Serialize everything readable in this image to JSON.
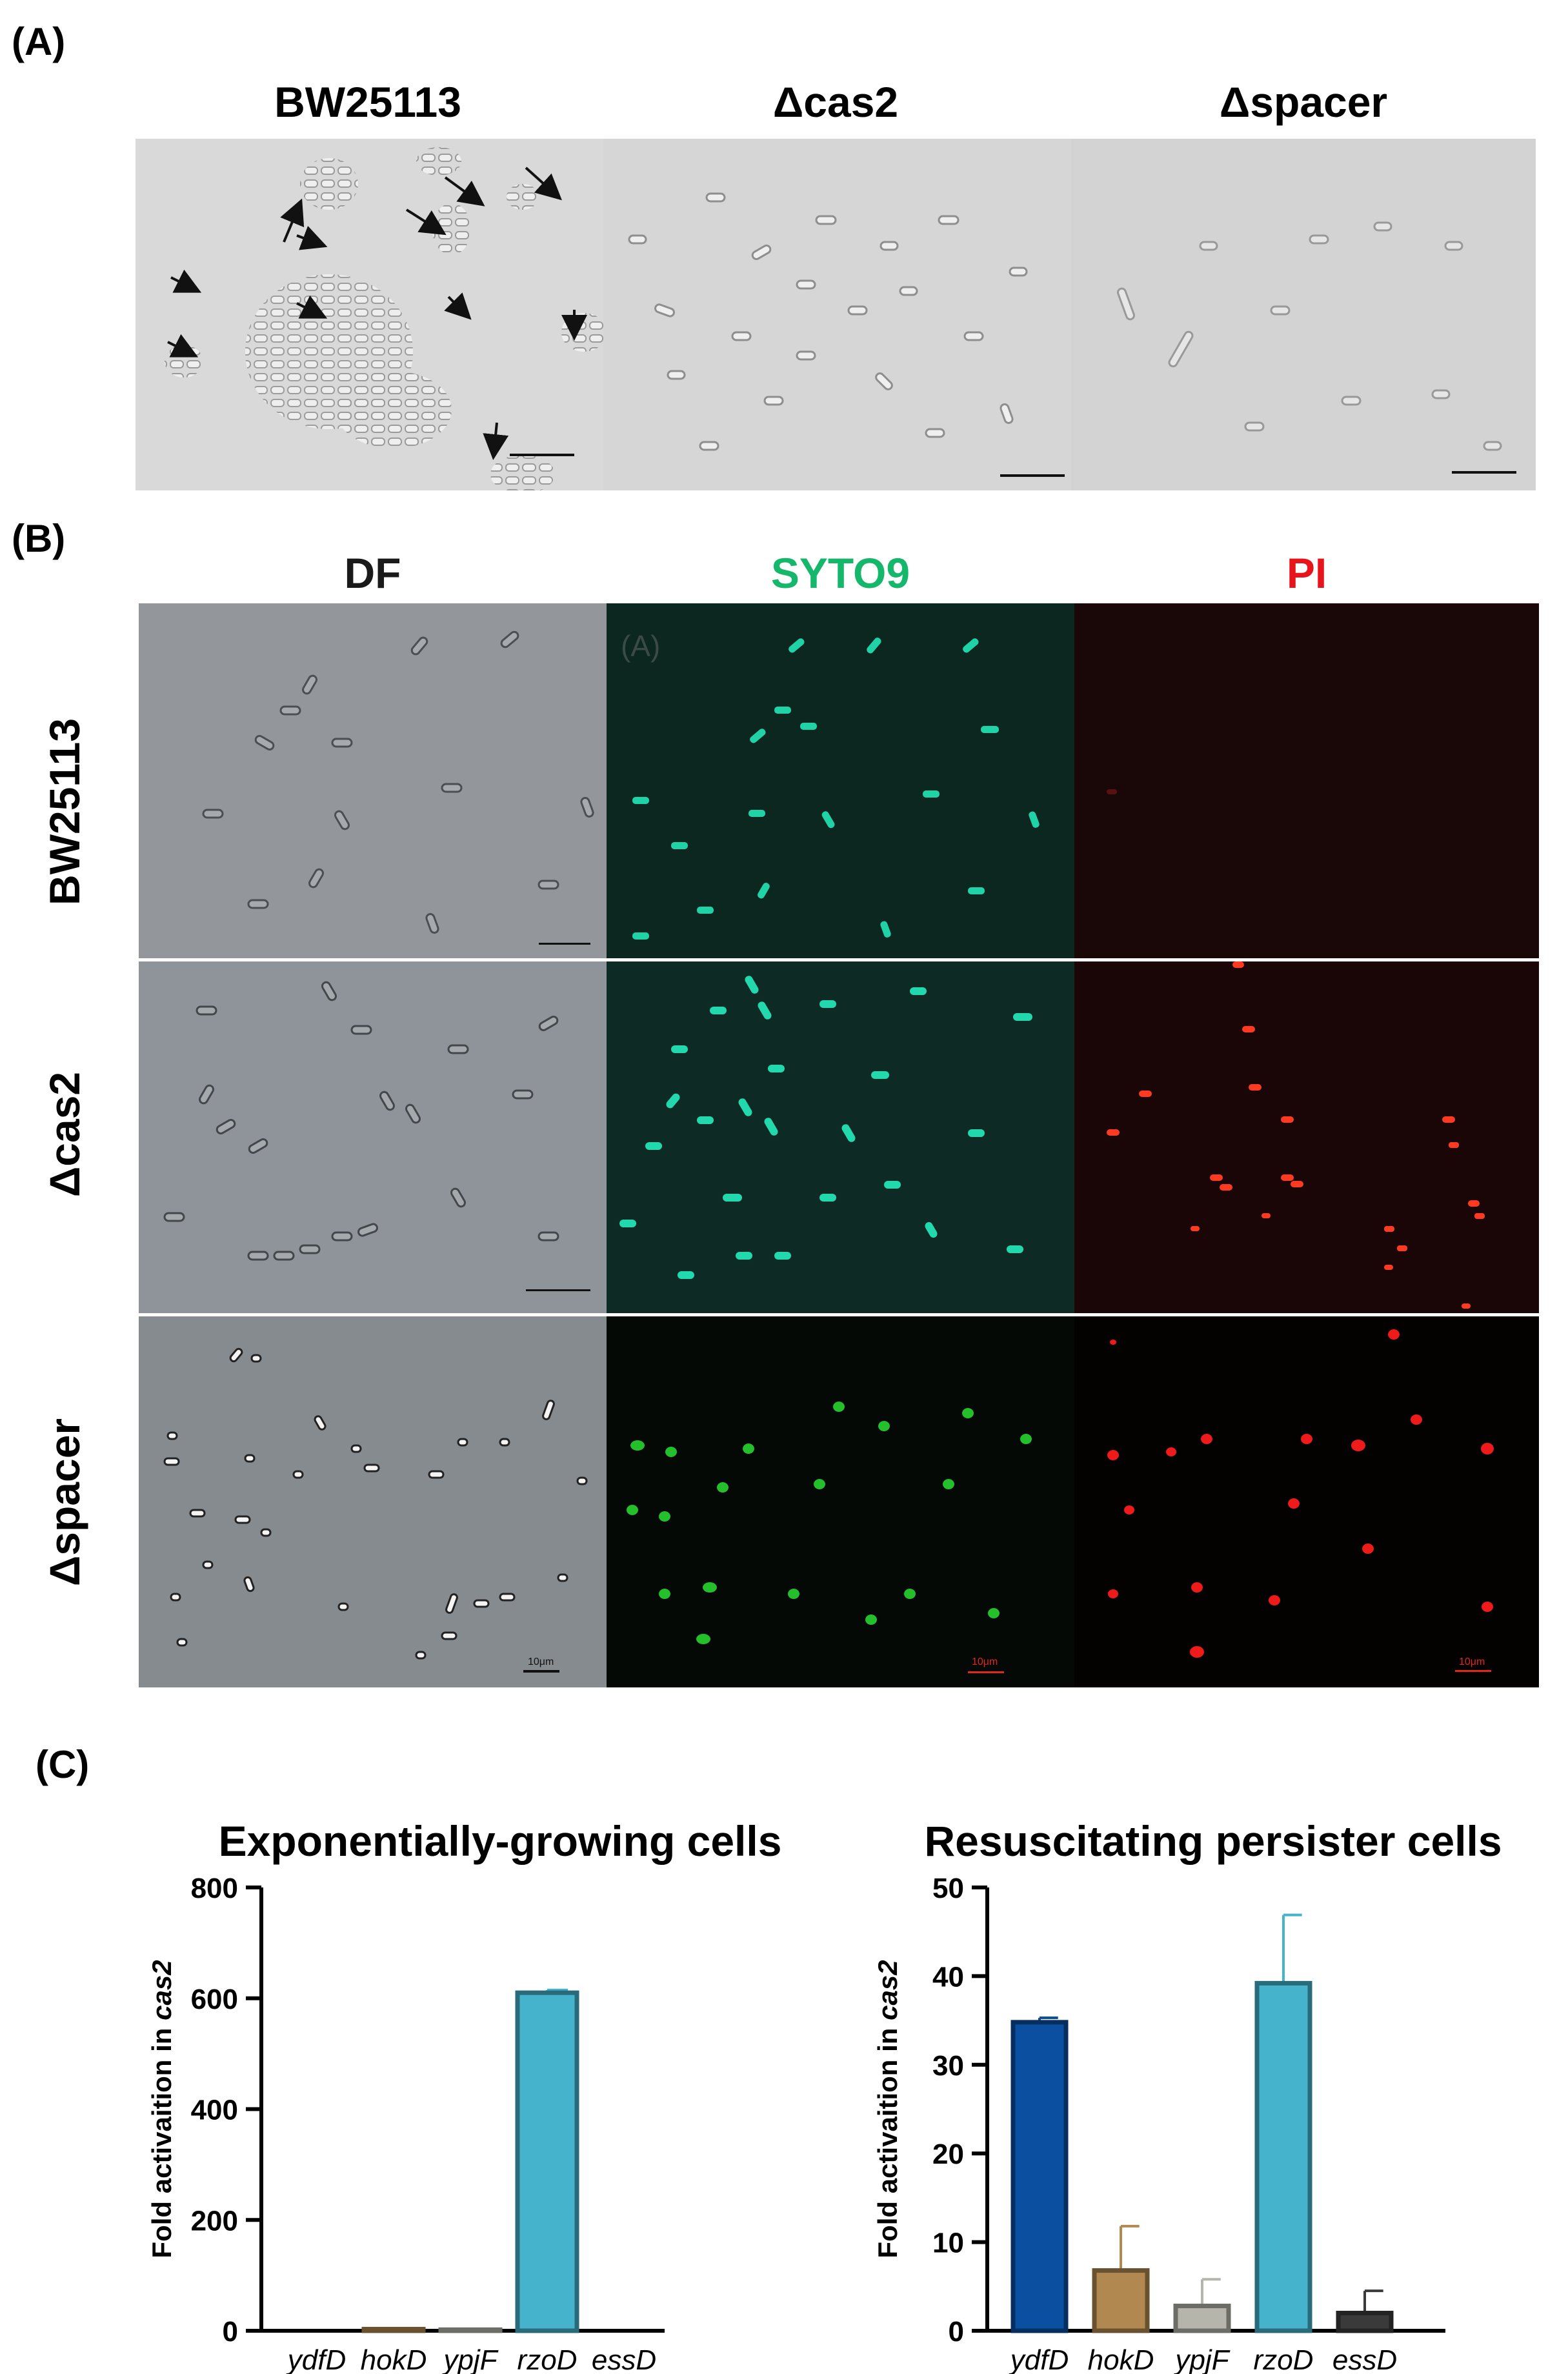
{
  "panel_a": {
    "label": "(A)",
    "columns": [
      "BW25113",
      "Δcas2",
      "Δspacer"
    ]
  },
  "panel_b": {
    "label": "(B)",
    "columns": [
      {
        "text": "DF",
        "color": "#1a1a1a"
      },
      {
        "text": "SYTO9",
        "color": "#15b86a"
      },
      {
        "text": "PI",
        "color": "#e8141b"
      }
    ],
    "rows": [
      "BW25113",
      "Δcas2",
      "Δspacer"
    ],
    "scalebar_text": "10μm",
    "overlay_text": "(A)"
  },
  "panel_c": {
    "label": "(C)"
  },
  "chart_data": [
    {
      "type": "bar",
      "title": "Exponentially-growing cells",
      "ylabel": "Fold activaition in cas2",
      "categories": [
        "ydfD",
        "hokD",
        "ypjF",
        "rzoD",
        "essD"
      ],
      "values": [
        0,
        3,
        2,
        610,
        0
      ],
      "errors": [
        0,
        0,
        0,
        5,
        0
      ],
      "ylim": [
        0,
        800
      ],
      "yticks": [
        0,
        200,
        400,
        600,
        800
      ],
      "colors": [
        "#0a4fa0",
        "#b08850",
        "#b5b5ab",
        "#45b3cc",
        "#3a3a3a"
      ]
    },
    {
      "type": "bar",
      "title": "Resuscitating persister cells",
      "ylabel": "Fold activaition in cas2",
      "categories": [
        "ydfD",
        "hokD",
        "ypjF",
        "rzoD",
        "essD"
      ],
      "values": [
        34.8,
        6.8,
        2.8,
        39.2,
        2.0
      ],
      "errors": [
        0.5,
        5.0,
        3.0,
        7.7,
        2.5
      ],
      "ylim": [
        0,
        50
      ],
      "yticks": [
        0,
        10,
        20,
        30,
        40,
        50
      ],
      "colors": [
        "#0a4fa0",
        "#b08850",
        "#b5b5ab",
        "#45b3cc",
        "#3a3a3a"
      ]
    }
  ]
}
